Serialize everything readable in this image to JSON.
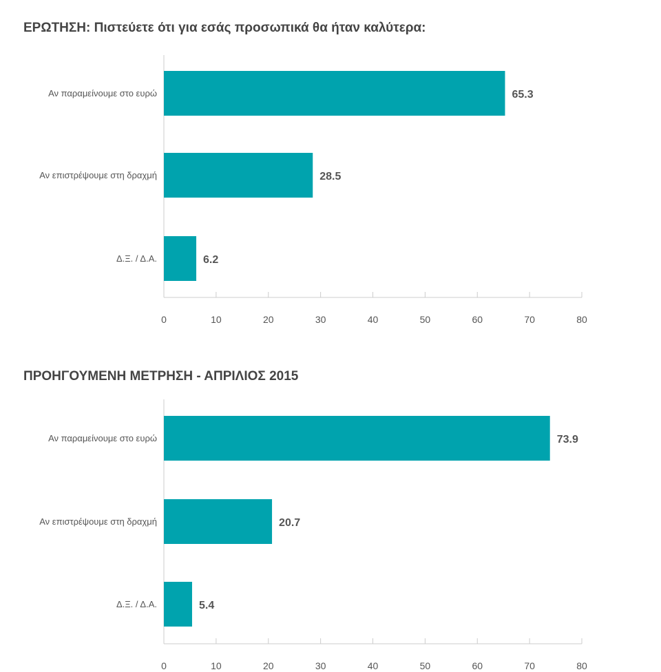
{
  "chart_data": [
    {
      "type": "bar",
      "orientation": "horizontal",
      "title": "ΕΡΩΤΗΣΗ: Πιστεύετε ότι για εσάς προσωπικά θα ήταν καλύτερα:",
      "categories": [
        "Αν παραμείνουμε στο ευρώ",
        "Αν επιστρέψουμε στη δραχμή",
        "Δ.Ξ. / Δ.Α."
      ],
      "values": [
        65.3,
        28.5,
        6.2
      ],
      "xlim": [
        0,
        80
      ],
      "ticks": [
        0,
        10,
        20,
        30,
        40,
        50,
        60,
        70,
        80
      ],
      "color": "#00a3ae"
    },
    {
      "type": "bar",
      "orientation": "horizontal",
      "title": "ΠΡΟΗΓΟΥΜΕΝΗ ΜΕΤΡΗΣΗ - ΑΠΡΙΛΙΟΣ 2015",
      "categories": [
        "Αν παραμείνουμε στο ευρώ",
        "Αν επιστρέψουμε στη δραχμή",
        "Δ.Ξ. / Δ.Α."
      ],
      "values": [
        73.9,
        20.7,
        5.4
      ],
      "xlim": [
        0,
        80
      ],
      "ticks": [
        0,
        10,
        20,
        30,
        40,
        50,
        60,
        70,
        80
      ],
      "color": "#00a3ae"
    }
  ]
}
